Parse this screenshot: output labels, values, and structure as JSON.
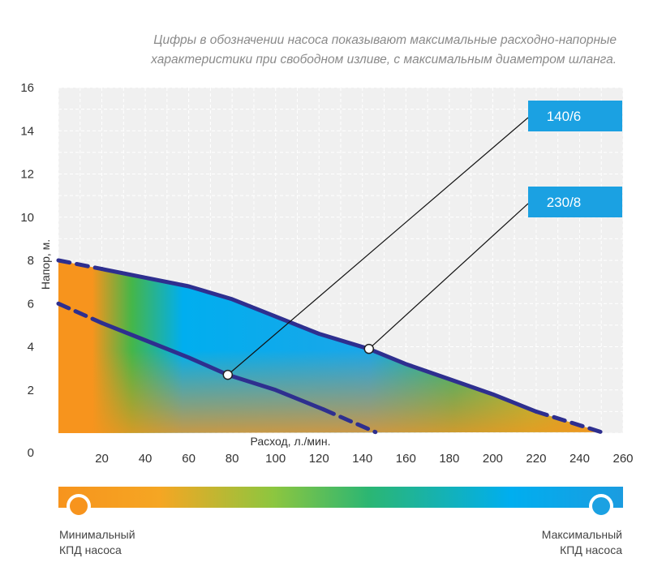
{
  "caption": {
    "line1": "Цифры в обозначении насоса показывают максимальные расходно-напорные",
    "line2": "характеристики при свободном изливе, с максимальным диаметром шланга."
  },
  "chart_data": {
    "type": "line",
    "xlabel": "Расход, л./мин.",
    "ylabel": "Напор, м.",
    "xlim": [
      0,
      260
    ],
    "ylim": [
      0,
      16
    ],
    "x_ticks": [
      20,
      40,
      60,
      80,
      100,
      120,
      140,
      160,
      180,
      200,
      220,
      240,
      260
    ],
    "y_ticks": [
      0,
      2,
      4,
      6,
      8,
      10,
      12,
      14,
      16
    ],
    "grid": true,
    "series": [
      {
        "name": "140/6",
        "solid": [
          [
            20,
            5.1
          ],
          [
            40,
            4.3
          ],
          [
            60,
            3.5
          ],
          [
            78,
            2.7
          ],
          [
            100,
            2.0
          ],
          [
            122,
            1.1
          ]
        ],
        "dashed_start": [
          [
            0,
            6.0
          ],
          [
            20,
            5.1
          ]
        ],
        "dashed_end": [
          [
            122,
            1.1
          ],
          [
            146,
            0.05
          ]
        ],
        "marker": [
          78,
          2.7
        ],
        "color": "#2e2f8f"
      },
      {
        "name": "230/8",
        "solid": [
          [
            20,
            7.6
          ],
          [
            40,
            7.2
          ],
          [
            60,
            6.8
          ],
          [
            80,
            6.2
          ],
          [
            100,
            5.4
          ],
          [
            120,
            4.6
          ],
          [
            143,
            3.9
          ],
          [
            160,
            3.2
          ],
          [
            180,
            2.5
          ],
          [
            200,
            1.8
          ],
          [
            220,
            1.0
          ]
        ],
        "dashed_start": [
          [
            0,
            8.0
          ],
          [
            20,
            7.6
          ]
        ],
        "dashed_end": [
          [
            220,
            1.0
          ],
          [
            250,
            0.05
          ]
        ],
        "marker": [
          143,
          3.9
        ],
        "color": "#2e2f8f"
      }
    ],
    "efficiency_scale": {
      "min_label": "Минимальный КПД насоса",
      "max_label": "Максимальный КПД насоса",
      "colors": [
        "#f7941d",
        "#f5a623",
        "#8dc63f",
        "#2bb673",
        "#00aeef",
        "#1b9ce0"
      ]
    }
  },
  "legend": {
    "min_line1": "Минимальный",
    "min_line2": "КПД насоса",
    "max_line1": "Максимальный",
    "max_line2": "КПД насоса"
  },
  "colors": {
    "curve": "#2e2f8f",
    "label_bg": "#1ba1e2",
    "orange": "#f7941d",
    "blue": "#00aeef",
    "green": "#2bb673"
  }
}
